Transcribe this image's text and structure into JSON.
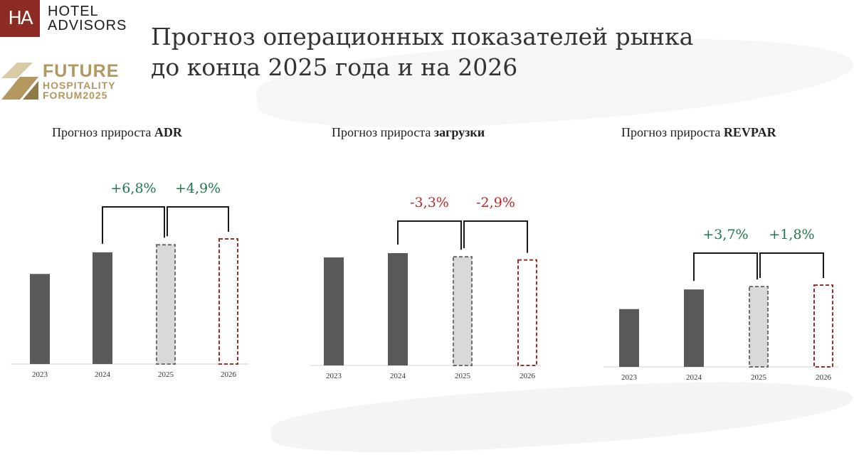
{
  "brand": {
    "logo_mark": "HA",
    "name_line1": "HOTEL",
    "name_line2": "ADVISORS",
    "forum_line1": "FUTURE",
    "forum_line2": "HOSPITALITY",
    "forum_line3": "FORUM2025"
  },
  "title": {
    "line1": "Прогноз операционных показателей рынка",
    "line2": "до конца 2025 года и на 2026"
  },
  "colors": {
    "bar_actual": "#595959",
    "bar_forecast_fill": "#d9d9d9",
    "bar_forecast_stroke": "#6f6f6f",
    "bar_next_stroke": "#9b2f2b",
    "positive": "#1e7a4a",
    "negative": "#c0282c",
    "bracket": "#1a1a1a"
  },
  "chart_data": [
    {
      "type": "bar",
      "title_prefix": "Прогноз прироста ",
      "title_bold": "ADR",
      "categories": [
        "2023",
        "2024",
        "2025",
        "2026"
      ],
      "values": [
        100,
        124,
        132.4,
        138.9
      ],
      "styles": [
        "actual",
        "actual",
        "forecast",
        "next"
      ],
      "growth": [
        {
          "from": 1,
          "to": 2,
          "label": "+6,8%",
          "sign": "positive"
        },
        {
          "from": 2,
          "to": 3,
          "label": "+4,9%",
          "sign": "positive"
        }
      ]
    },
    {
      "type": "bar",
      "title_prefix": "Прогноз прироста ",
      "title_bold": "загрузки",
      "categories": [
        "2023",
        "2024",
        "2025",
        "2026"
      ],
      "values": [
        100,
        104,
        100.6,
        97.7
      ],
      "styles": [
        "actual",
        "actual",
        "forecast",
        "next"
      ],
      "growth": [
        {
          "from": 1,
          "to": 2,
          "label": "-3,3%",
          "sign": "negative"
        },
        {
          "from": 2,
          "to": 3,
          "label": "-2,9%",
          "sign": "negative"
        }
      ]
    },
    {
      "type": "bar",
      "title_prefix": "Прогноз прироста ",
      "title_bold": "REVPAR",
      "categories": [
        "2023",
        "2024",
        "2025",
        "2026"
      ],
      "values": [
        100,
        134,
        139,
        141.5
      ],
      "styles": [
        "actual",
        "actual",
        "forecast",
        "next"
      ],
      "growth": [
        {
          "from": 1,
          "to": 2,
          "label": "+3,7%",
          "sign": "positive"
        },
        {
          "from": 2,
          "to": 3,
          "label": "+1,8%",
          "sign": "positive"
        }
      ]
    }
  ]
}
